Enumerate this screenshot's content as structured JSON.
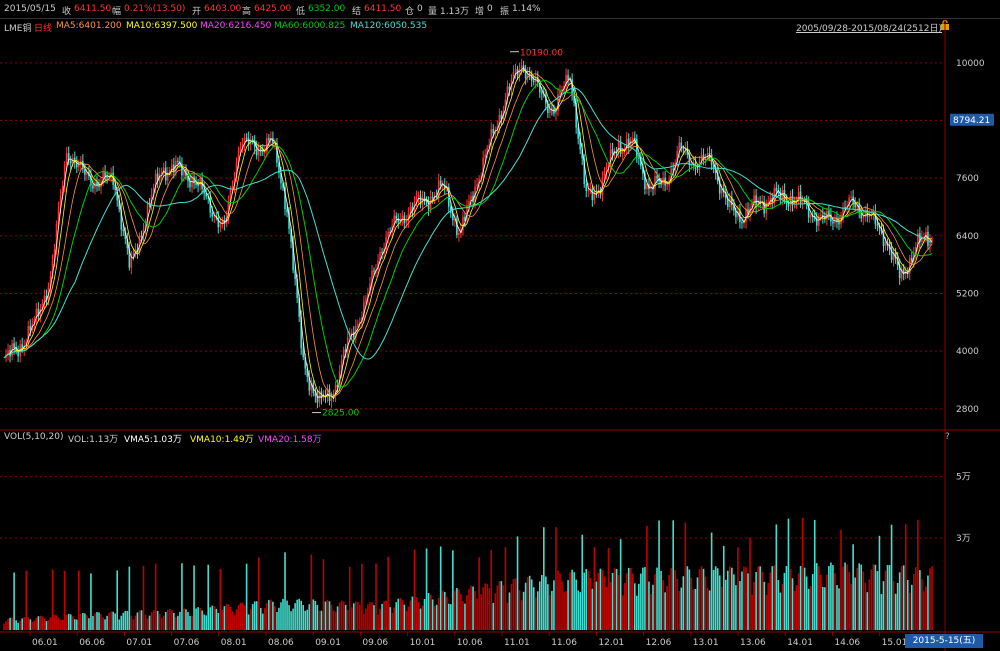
{
  "header": {
    "date": "2015/05/15",
    "close_label": "收",
    "close": "6411.50",
    "change_label": "幅",
    "change": "0.21%(13.50)",
    "open_label": "开",
    "open": "6403.00",
    "high_label": "高",
    "high": "6425.00",
    "low_label": "低",
    "low": "6352.00",
    "settle_label": "结",
    "settle": "6411.50",
    "oi_label": "仓",
    "oi": "0",
    "vol_label": "量",
    "vol": "1.13万",
    "incr_label": "增",
    "incr": "0",
    "amp_label": "振",
    "amp": "1.14%"
  },
  "legend": {
    "symbol": "LME铜",
    "period": "日线",
    "ma5": "MA5:6401.200",
    "ma10": "MA10:6397.500",
    "ma20": "MA20:6216.450",
    "ma60": "MA60:6000.825",
    "ma120": "MA120:6050.535",
    "range": "2005/09/28-2015/08/24(2512日)"
  },
  "vol_legend": {
    "name": "VOL(5,10,20)",
    "vol": "VOL:1.13万",
    "vma5": "VMA5:1.03万",
    "vma10": "VMA10:1.49万",
    "vma20": "VMA20:1.58万"
  },
  "help": "?",
  "current_date": "2015-5-15(五)",
  "colors": {
    "up": "#ff3030",
    "down": "#40e0d0",
    "ma5": "#ffffff",
    "ma10": "#ffff00",
    "ma20": "#ff00ff",
    "ma60": "#00cc00",
    "ma120": "#40e0d0"
  },
  "chart_data": {
    "type": "line",
    "price_axis": {
      "ylim": [
        2400,
        10600
      ],
      "ticks": [
        2800,
        4000,
        5200,
        6400,
        7600,
        8800,
        10000
      ]
    },
    "volume_axis": {
      "ticks_labels": [
        "3万",
        "5万"
      ],
      "ticks": [
        30000,
        50000
      ]
    },
    "x_ticks": [
      "06.01",
      "06.06",
      "07.01",
      "07.06",
      "08.01",
      "08.06",
      "09.01",
      "09.06",
      "10.01",
      "10.06",
      "11.01",
      "11.06",
      "12.01",
      "12.06",
      "13.01",
      "13.06",
      "14.01",
      "14.06",
      "15.01"
    ],
    "current_price": "8794.21",
    "annotations": {
      "max": "10190.00",
      "min": "2825.00"
    },
    "price_series": {
      "name": "LME铜",
      "x": [
        "2005-09",
        "2005-11",
        "2006-01",
        "2006-03",
        "2006-05",
        "2006-07",
        "2006-09",
        "2006-11",
        "2007-01",
        "2007-03",
        "2007-05",
        "2007-07",
        "2007-09",
        "2007-11",
        "2008-01",
        "2008-03",
        "2008-05",
        "2008-07",
        "2008-09",
        "2008-11",
        "2008-12",
        "2009-02",
        "2009-04",
        "2009-06",
        "2009-08",
        "2009-10",
        "2009-12",
        "2010-02",
        "2010-04",
        "2010-06",
        "2010-08",
        "2010-10",
        "2010-12",
        "2011-02",
        "2011-04",
        "2011-06",
        "2011-08",
        "2011-10",
        "2011-12",
        "2012-02",
        "2012-04",
        "2012-06",
        "2012-08",
        "2012-10",
        "2012-12",
        "2013-02",
        "2013-04",
        "2013-06",
        "2013-08",
        "2013-10",
        "2013-12",
        "2014-02",
        "2014-04",
        "2014-06",
        "2014-08",
        "2014-10",
        "2014-12",
        "2015-02",
        "2015-04",
        "2015-05"
      ],
      "values": [
        3800,
        4100,
        4600,
        5600,
        8200,
        7700,
        7500,
        7600,
        5700,
        6800,
        7800,
        7800,
        7600,
        7100,
        6500,
        8400,
        8200,
        8400,
        7000,
        3800,
        2900,
        3200,
        4300,
        5000,
        6200,
        6700,
        7000,
        7200,
        7400,
        6400,
        7500,
        8400,
        9400,
        10000,
        9400,
        9000,
        9800,
        7200,
        7500,
        8300,
        8300,
        7400,
        7500,
        8200,
        7900,
        8000,
        7000,
        6800,
        7100,
        7200,
        7200,
        7000,
        6700,
        6800,
        7100,
        6800,
        6400,
        5500,
        6200,
        6411.5
      ]
    },
    "volume_series": {
      "name": "VOL",
      "x": [
        "2005",
        "2006",
        "2007",
        "2008",
        "2009",
        "2010",
        "2011",
        "2012",
        "2013",
        "2014",
        "2015"
      ],
      "values": [
        3000,
        4500,
        5500,
        8000,
        7000,
        11000,
        15000,
        16000,
        16000,
        17000,
        16000
      ]
    }
  }
}
